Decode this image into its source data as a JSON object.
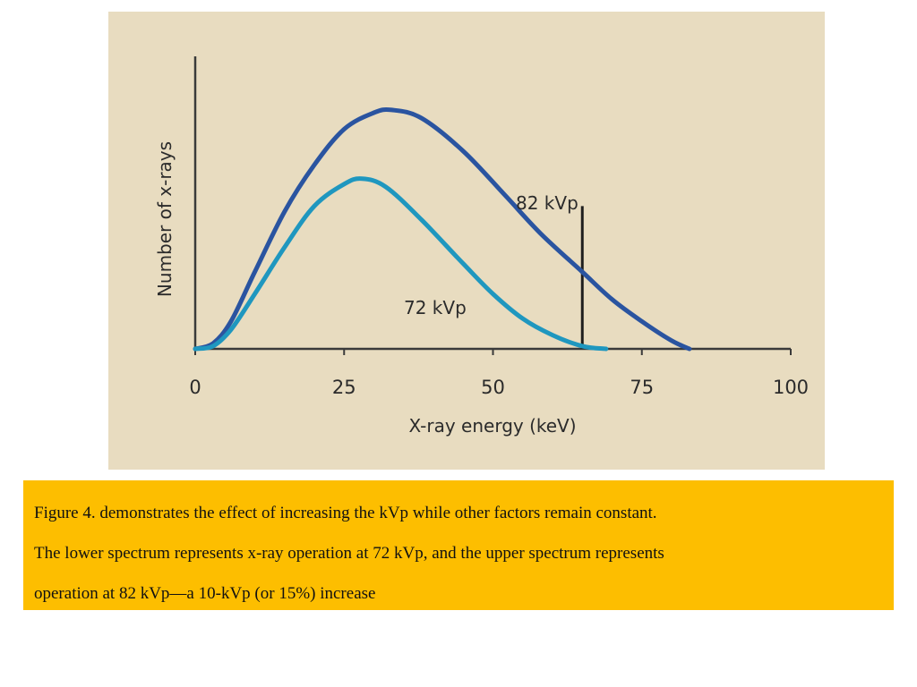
{
  "colors": {
    "figure_background": "#e8dcc0",
    "axis": "#3a3a3a",
    "caption_background": "#fdbe00"
  },
  "chart_data": {
    "type": "line",
    "title": "",
    "xlabel": "X-ray energy (keV)",
    "ylabel": "Number of x-rays",
    "xlim": [
      0,
      100
    ],
    "ylim": [
      0,
      1
    ],
    "x_ticks": [
      0,
      25,
      50,
      75,
      100
    ],
    "y_ticks": [],
    "grid": false,
    "legend": "none",
    "series": [
      {
        "name": "82 kVp",
        "label": "82 kVp",
        "color": "#2a54a0",
        "x": [
          0,
          3,
          6,
          10,
          15,
          20,
          25,
          30,
          33,
          38,
          45,
          52,
          58,
          65,
          70,
          75,
          80,
          83
        ],
        "y": [
          0.0,
          0.02,
          0.1,
          0.28,
          0.5,
          0.67,
          0.8,
          0.86,
          0.87,
          0.84,
          0.72,
          0.56,
          0.42,
          0.28,
          0.18,
          0.1,
          0.03,
          0.0
        ]
      },
      {
        "name": "72 kVp",
        "label": "72 kVp",
        "color": "#1f97bf",
        "x": [
          0,
          3,
          6,
          10,
          15,
          20,
          25,
          28,
          32,
          38,
          45,
          50,
          55,
          60,
          65,
          69
        ],
        "y": [
          0.0,
          0.01,
          0.07,
          0.2,
          0.37,
          0.52,
          0.6,
          0.62,
          0.59,
          0.47,
          0.31,
          0.2,
          0.11,
          0.05,
          0.01,
          0.0
        ]
      }
    ],
    "marker_line": {
      "x": 65,
      "y_top": 0.52
    }
  },
  "caption": {
    "lines": [
      "Figure 4. demonstrates the effect of increasing the kVp while other factors remain constant.",
      "The lower spectrum represents x-ray operation at 72 kVp, and the upper spectrum represents",
      "operation at 82 kVp—a 10-kVp (or 15%) increase"
    ]
  }
}
